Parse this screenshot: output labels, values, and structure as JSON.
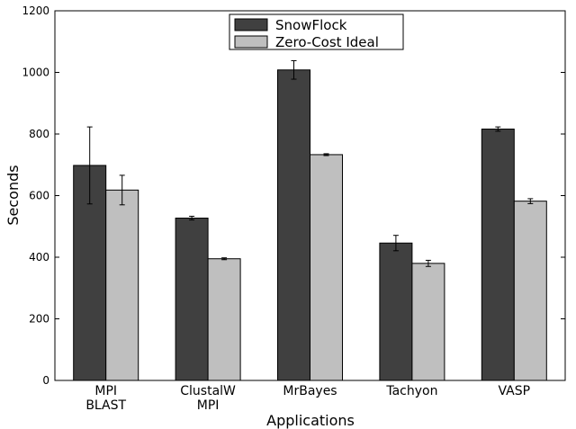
{
  "chart_data": {
    "type": "bar",
    "title": "",
    "xlabel": "Applications",
    "ylabel": "Seconds",
    "ylim": [
      0,
      1200
    ],
    "yticks": [
      0,
      200,
      400,
      600,
      800,
      1000,
      1200
    ],
    "categories": [
      [
        "MPI",
        "BLAST"
      ],
      [
        "ClustalW",
        "MPI"
      ],
      [
        "MrBayes"
      ],
      [
        "Tachyon"
      ],
      [
        "VASP"
      ]
    ],
    "series": [
      {
        "name": "SnowFlock",
        "color": "#404040",
        "values": [
          698,
          527,
          1008,
          446,
          816
        ],
        "errors": [
          125,
          6,
          30,
          25,
          7
        ]
      },
      {
        "name": "Zero-Cost Ideal",
        "color": "#bfbfbf",
        "values": [
          618,
          395,
          733,
          380,
          582
        ],
        "errors": [
          48,
          3,
          3,
          10,
          8
        ]
      }
    ],
    "legend": {
      "position": "top-center"
    },
    "grid": false
  }
}
